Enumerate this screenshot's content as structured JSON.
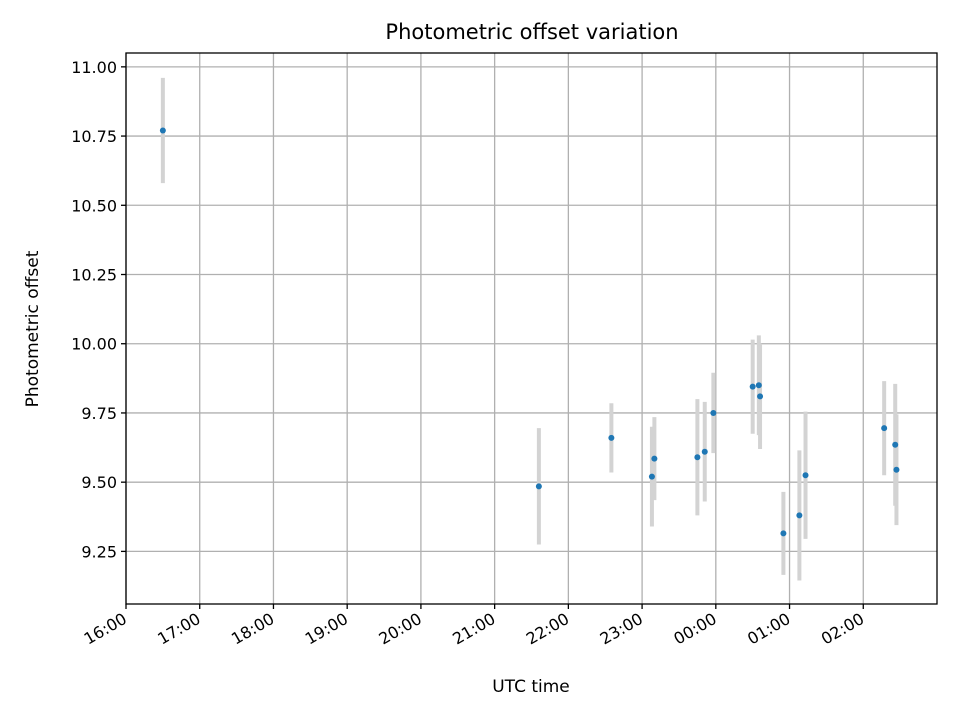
{
  "chart_data": {
    "type": "scatter",
    "title": "Photometric offset variation",
    "xlabel": "UTC time",
    "ylabel": "Photometric offset",
    "x_unit": "UTC datetime",
    "xlim": [
      "2000-01-01T16:00",
      "2000-01-02T03:00"
    ],
    "ylim": [
      9.06,
      11.05
    ],
    "x_ticks": [
      {
        "t": "2000-01-01T16:00",
        "label": "16:00"
      },
      {
        "t": "2000-01-01T17:00",
        "label": "17:00"
      },
      {
        "t": "2000-01-01T18:00",
        "label": "18:00"
      },
      {
        "t": "2000-01-01T19:00",
        "label": "19:00"
      },
      {
        "t": "2000-01-01T20:00",
        "label": "20:00"
      },
      {
        "t": "2000-01-01T21:00",
        "label": "21:00"
      },
      {
        "t": "2000-01-01T22:00",
        "label": "22:00"
      },
      {
        "t": "2000-01-01T23:00",
        "label": "23:00"
      },
      {
        "t": "2000-01-02T00:00",
        "label": "00:00"
      },
      {
        "t": "2000-01-02T01:00",
        "label": "01:00"
      },
      {
        "t": "2000-01-02T02:00",
        "label": "02:00"
      }
    ],
    "y_ticks": [
      {
        "v": 9.25,
        "label": "9.25"
      },
      {
        "v": 9.5,
        "label": "9.50"
      },
      {
        "v": 9.75,
        "label": "9.75"
      },
      {
        "v": 10.0,
        "label": "10.00"
      },
      {
        "v": 10.25,
        "label": "10.25"
      },
      {
        "v": 10.5,
        "label": "10.50"
      },
      {
        "v": 10.75,
        "label": "10.75"
      },
      {
        "v": 11.0,
        "label": "11.00"
      }
    ],
    "grid": true,
    "marker_color": "#1f77b4",
    "errorbar_color": "#d3d3d3",
    "points": [
      {
        "t": "2000-01-01T16:30",
        "y": 10.77,
        "err": 0.19
      },
      {
        "t": "2000-01-01T21:36",
        "y": 9.485,
        "err": 0.21
      },
      {
        "t": "2000-01-01T22:35",
        "y": 9.66,
        "err": 0.125
      },
      {
        "t": "2000-01-01T23:08",
        "y": 9.52,
        "err": 0.18
      },
      {
        "t": "2000-01-01T23:10",
        "y": 9.585,
        "err": 0.15
      },
      {
        "t": "2000-01-01T23:45",
        "y": 9.59,
        "err": 0.21
      },
      {
        "t": "2000-01-01T23:51",
        "y": 9.61,
        "err": 0.18
      },
      {
        "t": "2000-01-01T23:58",
        "y": 9.75,
        "err": 0.145
      },
      {
        "t": "2000-01-02T00:30",
        "y": 9.845,
        "err": 0.17
      },
      {
        "t": "2000-01-02T00:35",
        "y": 9.85,
        "err": 0.18
      },
      {
        "t": "2000-01-02T00:36",
        "y": 9.81,
        "err": 0.19
      },
      {
        "t": "2000-01-02T00:55",
        "y": 9.315,
        "err": 0.15
      },
      {
        "t": "2000-01-02T01:08",
        "y": 9.38,
        "err": 0.235
      },
      {
        "t": "2000-01-02T01:13",
        "y": 9.525,
        "err": 0.23
      },
      {
        "t": "2000-01-02T02:17",
        "y": 9.695,
        "err": 0.17
      },
      {
        "t": "2000-01-02T02:26",
        "y": 9.635,
        "err": 0.22
      },
      {
        "t": "2000-01-02T02:27",
        "y": 9.545,
        "err": 0.2
      }
    ]
  }
}
